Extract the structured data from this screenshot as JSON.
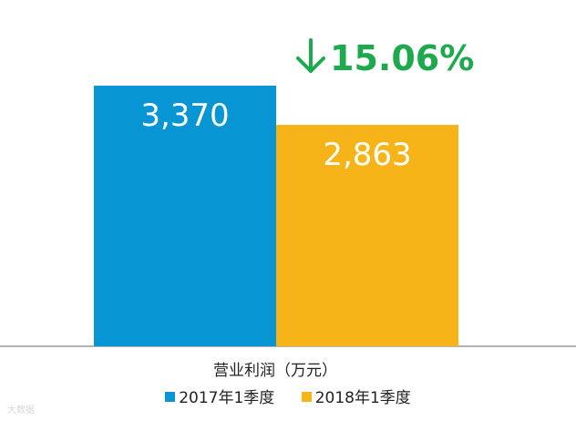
{
  "chart_data": {
    "type": "bar",
    "categories": [
      "2017年1季度",
      "2018年1季度"
    ],
    "values": [
      3370,
      2863
    ],
    "value_labels": [
      "3,370",
      "2,863"
    ],
    "colors": [
      "#0795D3",
      "#F6B419"
    ],
    "xlabel": "营业利润（万元）",
    "ylabel": "",
    "ylim": [
      0,
      3370
    ],
    "grid": false,
    "legend_position": "bottom",
    "change_annotation": {
      "text": "15.06%",
      "direction": "down",
      "color": "#1FA94F"
    }
  },
  "legend": [
    {
      "label": "2017年1季度",
      "color": "#0795D3"
    },
    {
      "label": "2018年1季度",
      "color": "#F6B419"
    }
  ],
  "watermark": "大数据"
}
